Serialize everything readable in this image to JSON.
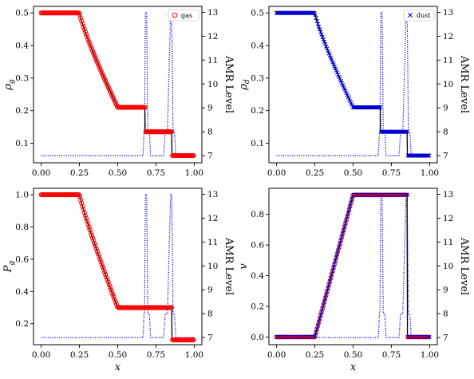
{
  "colors": {
    "gas_marker": "#ff0000",
    "dust_marker": "#0000cc",
    "amr_line": "#0000cc",
    "exact_line": "#000000"
  },
  "chart_data": [
    {
      "type": "line",
      "panel": "top-left",
      "xlabel": "",
      "ylabel": "ρg",
      "y2label": "AMR Level",
      "xlim": [
        -0.05,
        1.05
      ],
      "ylim": [
        0.04,
        0.52
      ],
      "y2lim": [
        6.7,
        13.25
      ],
      "xticks": [
        "0.00",
        "0.25",
        "0.50",
        "0.75",
        "1.00"
      ],
      "yticks": [
        "0.1",
        "0.2",
        "0.3",
        "0.4",
        "0.5"
      ],
      "y2ticks": [
        "7",
        "8",
        "9",
        "10",
        "11",
        "12",
        "13"
      ],
      "legend": {
        "position": "top-right",
        "entries": [
          {
            "label": "gas",
            "marker": "circle"
          }
        ]
      },
      "profile": {
        "kind": "sod_density",
        "left": 0.5,
        "fan_start": 0.25,
        "fan_end": 0.5,
        "plateau": 0.21,
        "contact": 0.68,
        "post_shock": 0.135,
        "shock": 0.855,
        "right": 0.062
      }
    },
    {
      "type": "line",
      "panel": "top-right",
      "xlabel": "",
      "ylabel": "ρd",
      "y2label": "AMR Level",
      "xlim": [
        -0.05,
        1.05
      ],
      "ylim": [
        0.04,
        0.52
      ],
      "y2lim": [
        6.7,
        13.25
      ],
      "xticks": [
        "0.00",
        "0.25",
        "0.50",
        "0.75",
        "1.00"
      ],
      "yticks": [
        "0.1",
        "0.2",
        "0.3",
        "0.4",
        "0.5"
      ],
      "y2ticks": [
        "7",
        "8",
        "9",
        "10",
        "11",
        "12",
        "13"
      ],
      "legend": {
        "position": "top-right",
        "entries": [
          {
            "label": "dust",
            "marker": "x"
          }
        ]
      },
      "profile": {
        "kind": "sod_density",
        "left": 0.5,
        "fan_start": 0.25,
        "fan_end": 0.5,
        "plateau": 0.21,
        "contact": 0.68,
        "post_shock": 0.135,
        "shock": 0.855,
        "right": 0.062
      }
    },
    {
      "type": "line",
      "panel": "bottom-left",
      "xlabel": "x",
      "ylabel": "Pg",
      "y2label": "AMR Level",
      "xlim": [
        -0.05,
        1.05
      ],
      "ylim": [
        0.07,
        1.04
      ],
      "y2lim": [
        6.7,
        13.25
      ],
      "xticks": [
        "0.00",
        "0.25",
        "0.50",
        "0.75",
        "1.00"
      ],
      "yticks": [
        "0.2",
        "0.4",
        "0.6",
        "0.8",
        "1.0"
      ],
      "y2ticks": [
        "7",
        "8",
        "9",
        "10",
        "11",
        "12",
        "13"
      ],
      "profile": {
        "kind": "sod_pressure",
        "left": 1.0,
        "fan_start": 0.25,
        "fan_end": 0.5,
        "plateau": 0.3,
        "shock": 0.855,
        "right": 0.1
      }
    },
    {
      "type": "line",
      "panel": "bottom-right",
      "xlabel": "x",
      "ylabel": "v",
      "y2label": "AMR Level",
      "xlim": [
        -0.05,
        1.05
      ],
      "ylim": [
        -0.05,
        0.97
      ],
      "y2lim": [
        6.7,
        13.25
      ],
      "xticks": [
        "0.00",
        "0.25",
        "0.50",
        "0.75",
        "1.00"
      ],
      "yticks": [
        "0.0",
        "0.2",
        "0.4",
        "0.6",
        "0.8"
      ],
      "y2ticks": [
        "7",
        "8",
        "9",
        "10",
        "11",
        "12",
        "13"
      ],
      "profile": {
        "kind": "sod_velocity",
        "left": 0.0,
        "fan_start": 0.25,
        "fan_end": 0.5,
        "plateau": 0.927,
        "shock": 0.855,
        "right": 0.0
      }
    }
  ],
  "amr_level": {
    "base": 7,
    "peaks": [
      {
        "x": 0.685,
        "level": 13,
        "ramp_start": 0.665,
        "step_level": 8,
        "step_end": 0.675
      },
      {
        "x": 0.85,
        "level": 13,
        "ramp_start": 0.8,
        "step_level": 8,
        "step_end": 0.825
      }
    ],
    "ramp_end": 0.88
  }
}
